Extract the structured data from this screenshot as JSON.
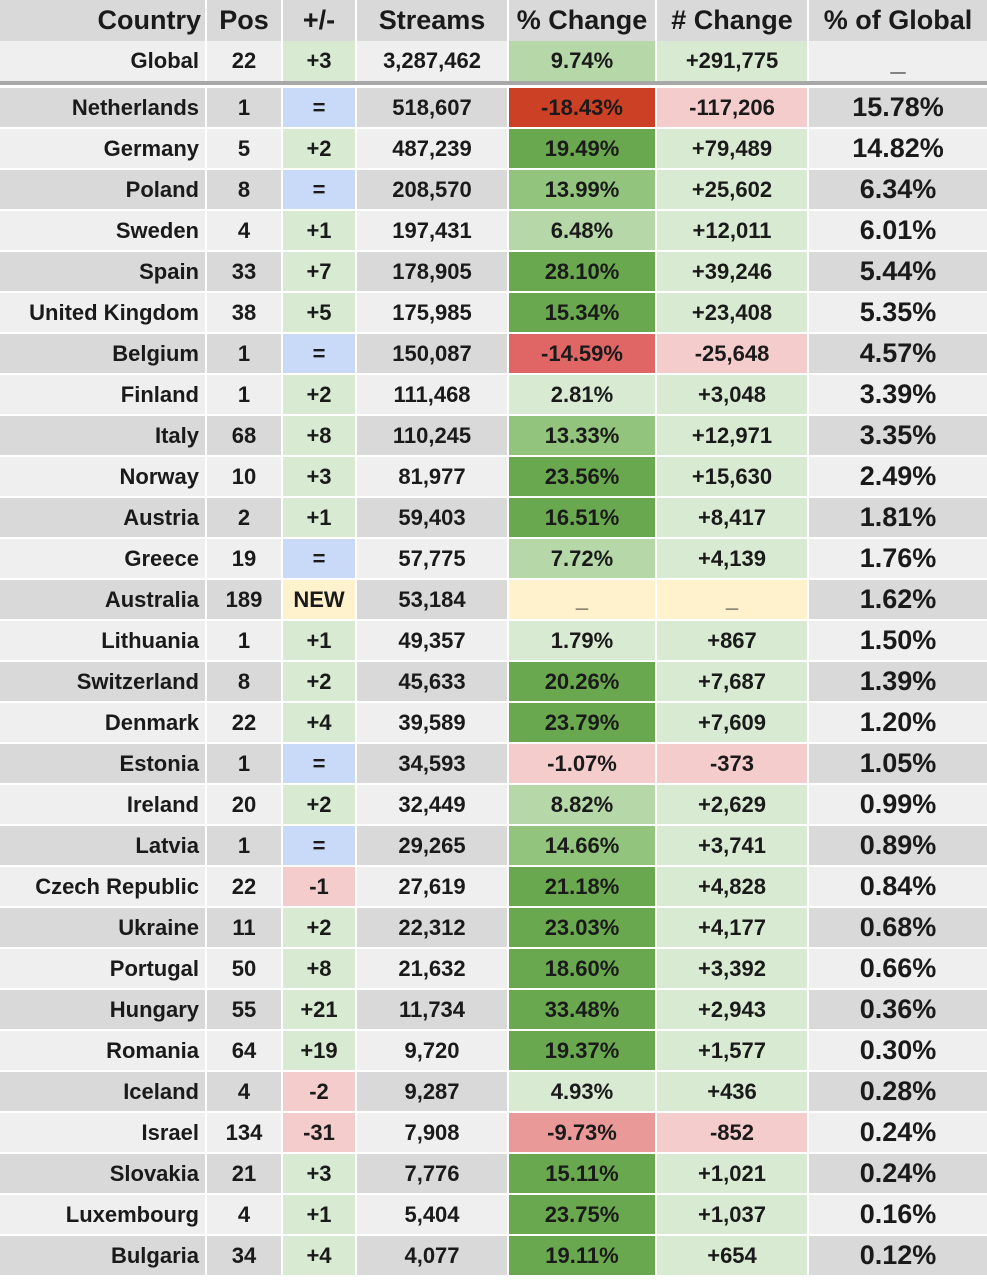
{
  "columns": [
    "Country",
    "Pos",
    "+/-",
    "Streams",
    "% Change",
    "# Change",
    "% of Global"
  ],
  "global": {
    "country": "Global",
    "pos": "22",
    "move": "+3",
    "streams": "3,287,462",
    "pct_change": "9.74%",
    "num_change": "+291,775",
    "pct_global": "_"
  },
  "rows": [
    {
      "country": "Netherlands",
      "pos": "1",
      "move": "=",
      "streams": "518,607",
      "pct_change": "-18.43%",
      "num_change": "-117,206",
      "pct_global": "15.78%"
    },
    {
      "country": "Germany",
      "pos": "5",
      "move": "+2",
      "streams": "487,239",
      "pct_change": "19.49%",
      "num_change": "+79,489",
      "pct_global": "14.82%"
    },
    {
      "country": "Poland",
      "pos": "8",
      "move": "=",
      "streams": "208,570",
      "pct_change": "13.99%",
      "num_change": "+25,602",
      "pct_global": "6.34%"
    },
    {
      "country": "Sweden",
      "pos": "4",
      "move": "+1",
      "streams": "197,431",
      "pct_change": "6.48%",
      "num_change": "+12,011",
      "pct_global": "6.01%"
    },
    {
      "country": "Spain",
      "pos": "33",
      "move": "+7",
      "streams": "178,905",
      "pct_change": "28.10%",
      "num_change": "+39,246",
      "pct_global": "5.44%"
    },
    {
      "country": "United Kingdom",
      "pos": "38",
      "move": "+5",
      "streams": "175,985",
      "pct_change": "15.34%",
      "num_change": "+23,408",
      "pct_global": "5.35%"
    },
    {
      "country": "Belgium",
      "pos": "1",
      "move": "=",
      "streams": "150,087",
      "pct_change": "-14.59%",
      "num_change": "-25,648",
      "pct_global": "4.57%"
    },
    {
      "country": "Finland",
      "pos": "1",
      "move": "+2",
      "streams": "111,468",
      "pct_change": "2.81%",
      "num_change": "+3,048",
      "pct_global": "3.39%"
    },
    {
      "country": "Italy",
      "pos": "68",
      "move": "+8",
      "streams": "110,245",
      "pct_change": "13.33%",
      "num_change": "+12,971",
      "pct_global": "3.35%"
    },
    {
      "country": "Norway",
      "pos": "10",
      "move": "+3",
      "streams": "81,977",
      "pct_change": "23.56%",
      "num_change": "+15,630",
      "pct_global": "2.49%"
    },
    {
      "country": "Austria",
      "pos": "2",
      "move": "+1",
      "streams": "59,403",
      "pct_change": "16.51%",
      "num_change": "+8,417",
      "pct_global": "1.81%"
    },
    {
      "country": "Greece",
      "pos": "19",
      "move": "=",
      "streams": "57,775",
      "pct_change": "7.72%",
      "num_change": "+4,139",
      "pct_global": "1.76%"
    },
    {
      "country": "Australia",
      "pos": "189",
      "move": "NEW",
      "streams": "53,184",
      "pct_change": "_",
      "num_change": "_",
      "pct_global": "1.62%"
    },
    {
      "country": "Lithuania",
      "pos": "1",
      "move": "+1",
      "streams": "49,357",
      "pct_change": "1.79%",
      "num_change": "+867",
      "pct_global": "1.50%"
    },
    {
      "country": "Switzerland",
      "pos": "8",
      "move": "+2",
      "streams": "45,633",
      "pct_change": "20.26%",
      "num_change": "+7,687",
      "pct_global": "1.39%"
    },
    {
      "country": "Denmark",
      "pos": "22",
      "move": "+4",
      "streams": "39,589",
      "pct_change": "23.79%",
      "num_change": "+7,609",
      "pct_global": "1.20%"
    },
    {
      "country": "Estonia",
      "pos": "1",
      "move": "=",
      "streams": "34,593",
      "pct_change": "-1.07%",
      "num_change": "-373",
      "pct_global": "1.05%"
    },
    {
      "country": "Ireland",
      "pos": "20",
      "move": "+2",
      "streams": "32,449",
      "pct_change": "8.82%",
      "num_change": "+2,629",
      "pct_global": "0.99%"
    },
    {
      "country": "Latvia",
      "pos": "1",
      "move": "=",
      "streams": "29,265",
      "pct_change": "14.66%",
      "num_change": "+3,741",
      "pct_global": "0.89%"
    },
    {
      "country": "Czech Republic",
      "pos": "22",
      "move": "-1",
      "streams": "27,619",
      "pct_change": "21.18%",
      "num_change": "+4,828",
      "pct_global": "0.84%"
    },
    {
      "country": "Ukraine",
      "pos": "11",
      "move": "+2",
      "streams": "22,312",
      "pct_change": "23.03%",
      "num_change": "+4,177",
      "pct_global": "0.68%"
    },
    {
      "country": "Portugal",
      "pos": "50",
      "move": "+8",
      "streams": "21,632",
      "pct_change": "18.60%",
      "num_change": "+3,392",
      "pct_global": "0.66%"
    },
    {
      "country": "Hungary",
      "pos": "55",
      "move": "+21",
      "streams": "11,734",
      "pct_change": "33.48%",
      "num_change": "+2,943",
      "pct_global": "0.36%"
    },
    {
      "country": "Romania",
      "pos": "64",
      "move": "+19",
      "streams": "9,720",
      "pct_change": "19.37%",
      "num_change": "+1,577",
      "pct_global": "0.30%"
    },
    {
      "country": "Iceland",
      "pos": "4",
      "move": "-2",
      "streams": "9,287",
      "pct_change": "4.93%",
      "num_change": "+436",
      "pct_global": "0.28%"
    },
    {
      "country": "Israel",
      "pos": "134",
      "move": "-31",
      "streams": "7,908",
      "pct_change": "-9.73%",
      "num_change": "-852",
      "pct_global": "0.24%"
    },
    {
      "country": "Slovakia",
      "pos": "21",
      "move": "+3",
      "streams": "7,776",
      "pct_change": "15.11%",
      "num_change": "+1,021",
      "pct_global": "0.24%"
    },
    {
      "country": "Luxembourg",
      "pos": "4",
      "move": "+1",
      "streams": "5,404",
      "pct_change": "23.75%",
      "num_change": "+1,037",
      "pct_global": "0.16%"
    },
    {
      "country": "Bulgaria",
      "pos": "34",
      "move": "+4",
      "streams": "4,077",
      "pct_change": "19.11%",
      "num_change": "+654",
      "pct_global": "0.12%"
    }
  ],
  "colors": {
    "header_bg": "#d9d9d9",
    "row_dark": "#d9d9d9",
    "row_light": "#efefef",
    "move_up": "#d9ead3",
    "move_same": "#c9daf8",
    "move_down": "#f4cccc",
    "move_new": "#fff2cc",
    "pct_high": "#6aa84f",
    "pct_mid": "#93c47d",
    "pct_low": "#b6d7a8",
    "pct_tiny": "#d9ead3",
    "pct_neg_strong": "#cc4125",
    "pct_neg_mid": "#e06666",
    "pct_neg_light": "#ea9999",
    "pct_neg_tiny": "#f4cccc",
    "num_pos": "#d9ead3",
    "num_neg": "#f4cccc",
    "new_bg": "#fff2cc"
  }
}
